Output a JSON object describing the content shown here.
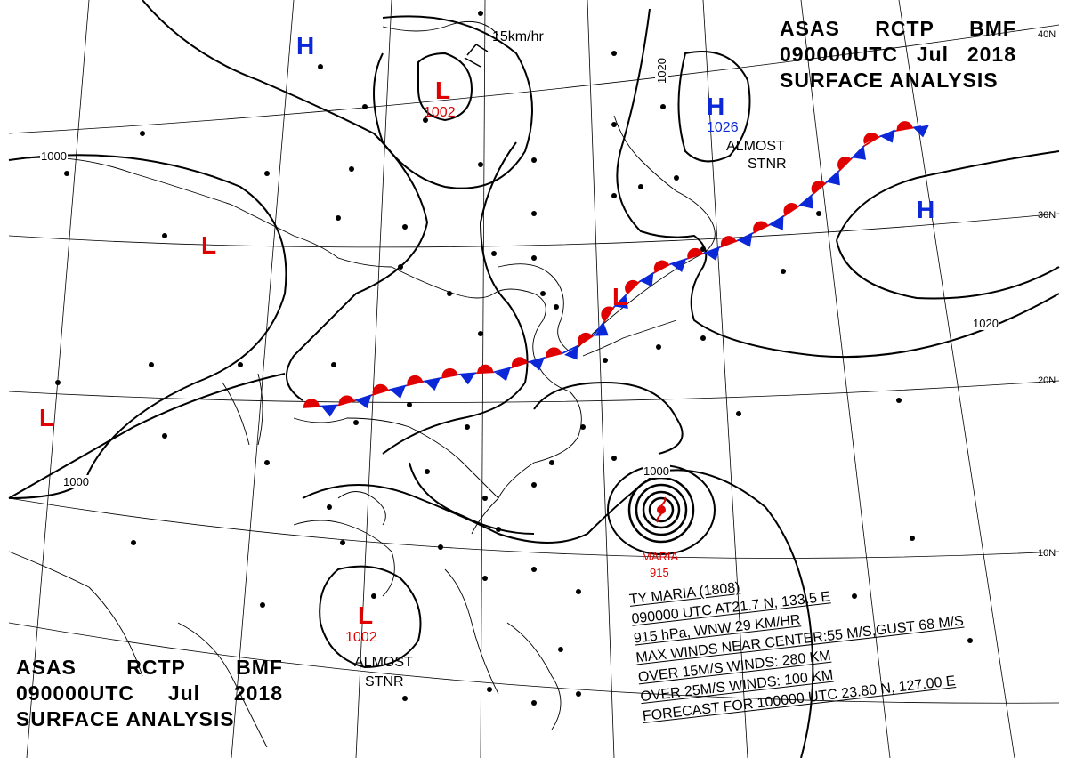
{
  "header_top": {
    "line1": [
      "ASAS",
      "RCTP",
      "BMF"
    ],
    "line2": [
      "090000UTC",
      "Jul",
      "2018"
    ],
    "line3": "SURFACE ANALYSIS"
  },
  "header_bottom": {
    "line1": [
      "ASAS",
      "RCTP",
      "BMF"
    ],
    "line2": [
      "090000UTC",
      "Jul",
      "2018"
    ],
    "line3": "SURFACE ANALYSIS"
  },
  "pressure_centers": [
    {
      "kind": "H",
      "color": "#0a28d8",
      "value": ""
    },
    {
      "kind": "L",
      "color": "#e00000",
      "value": "1002"
    },
    {
      "kind": "H",
      "color": "#0a28d8",
      "value": "1026"
    },
    {
      "kind": "H",
      "color": "#0a28d8",
      "value": ""
    },
    {
      "kind": "L",
      "color": "#e00000",
      "value": ""
    },
    {
      "kind": "L",
      "color": "#e00000",
      "value": ""
    },
    {
      "kind": "L",
      "color": "#e00000",
      "value": ""
    },
    {
      "kind": "L",
      "color": "#e00000",
      "value": "1002"
    }
  ],
  "isobar_labels": [
    "1000",
    "1020",
    "1020",
    "1000",
    "1000"
  ],
  "notes": {
    "motion": "15km/hr",
    "stnr_top": [
      "ALMOST",
      "STNR"
    ],
    "stnr_bottom": [
      "ALMOST",
      "STNR"
    ]
  },
  "typhoon": {
    "name": "MARIA",
    "pressure": "915",
    "isobar": "1000"
  },
  "typhoon_info": {
    "line1": "TY  MARIA  (1808)",
    "line2": "090000  UTC   AT21.7 N, 133.5 E",
    "line3": "915 hPa,  WNW  29 KM/HR",
    "line4": "MAX WINDS NEAR CENTER:55 M/S,GUST 68 M/S",
    "line5": "OVER 15M/S WINDS: 280 KM",
    "line6": "OVER 25M/S WINDS: 100 KM",
    "line7": "FORECAST FOR 100000 UTC 23.80 N, 127.00 E"
  },
  "latitude_labels": [
    "40N",
    "30N",
    "20N",
    "10N"
  ],
  "front": {
    "type": "stationary",
    "warm_color": "#e00000",
    "cold_color": "#0a28d8"
  }
}
